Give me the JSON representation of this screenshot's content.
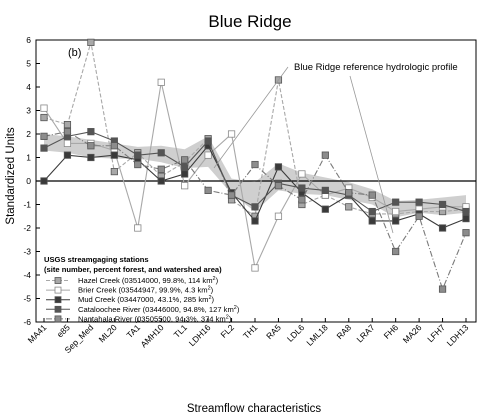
{
  "chart_data": {
    "type": "line",
    "title": "Blue Ridge",
    "panel_label": "(b)",
    "xlabel": "Streamflow characteristics",
    "ylabel": "Standardized Units",
    "ylim": [
      -6,
      6
    ],
    "yticks": [
      6,
      5,
      4,
      3,
      2,
      1,
      0,
      -1,
      -2,
      -3,
      -4,
      -5,
      -6
    ],
    "grid": false,
    "legend_placement": "bottom-left",
    "categories": [
      "MA41",
      "e85",
      "Sep_Med",
      "ML20",
      "TA1",
      "AMH10",
      "TL1",
      "LDH16",
      "FL2",
      "TH1",
      "RA5",
      "LDL6",
      "LML18",
      "RA8",
      "LRA7",
      "FH6",
      "MA26",
      "LFH7",
      "LDH13"
    ],
    "annotation": "Blue Ridge reference hydrologic profile",
    "reference_band": {
      "upper": [
        2.0,
        1.9,
        1.75,
        1.6,
        1.45,
        1.5,
        1.35,
        1.9,
        0.1,
        -0.05,
        0.75,
        0.35,
        0.15,
        -0.05,
        -0.35,
        -0.85,
        -0.8,
        -0.7,
        -0.6
      ],
      "lower": [
        1.3,
        1.2,
        1.0,
        0.95,
        0.95,
        0.8,
        0.55,
        0.6,
        -0.55,
        -1.3,
        -0.4,
        -0.55,
        -0.6,
        -0.8,
        -1.0,
        -1.55,
        -1.35,
        -1.45,
        -1.35
      ]
    },
    "legend": {
      "title_line1": "USGS streamgaging stations",
      "title_line2": "(site number, percent forest, and watershed area)"
    },
    "series": [
      {
        "name": "Hazel Creek",
        "site": "(03514000, 99.8%, 114 km",
        "sup": "2",
        "close": ")",
        "marker": "square",
        "fill": "#a8a8a8",
        "stroke": "#a8a8a8",
        "dash": "4,2",
        "values": [
          2.7,
          2.4,
          5.9,
          0.4,
          1.2,
          0.2,
          0.8,
          1.8,
          -0.8,
          -1.5,
          4.3,
          -1.0,
          -0.6,
          -1.1,
          -1.4,
          -1.4,
          -1.3,
          -1.3,
          -1.2
        ]
      },
      {
        "name": "Brier Creek",
        "site": "(03544947, 99.9%, 4.3 km",
        "sup": "2",
        "close": ")",
        "marker": "square-open",
        "fill": "#ffffff",
        "stroke": "#a8a8a8",
        "dash": "",
        "values": [
          3.1,
          1.6,
          1.6,
          1.3,
          -2.0,
          4.2,
          -0.2,
          1.1,
          2.0,
          -3.7,
          -1.5,
          0.3,
          -0.6,
          -0.3,
          -0.7,
          -1.3,
          -1.2,
          -1.1,
          -1.1
        ]
      },
      {
        "name": "Mud Creek",
        "site": "(03447000, 43.1%, 285 km",
        "sup": "2",
        "close": ")",
        "marker": "square",
        "fill": "#3a3a3a",
        "stroke": "#3a3a3a",
        "dash": "",
        "values": [
          0.0,
          1.1,
          1.0,
          1.1,
          0.9,
          0.0,
          0.3,
          1.5,
          -0.5,
          -1.7,
          0.6,
          -0.5,
          -1.2,
          -0.6,
          -1.7,
          -1.7,
          -1.4,
          -2.0,
          -1.6
        ]
      },
      {
        "name": "Cataloochee River",
        "site": "(03446000, 94.8%, 127 km",
        "sup": "2",
        "close": ")",
        "marker": "square",
        "fill": "#555555",
        "stroke": "#555555",
        "dash": "",
        "values": [
          1.4,
          1.9,
          2.1,
          1.7,
          1.1,
          1.2,
          0.6,
          1.7,
          -0.6,
          -1.1,
          -0.1,
          -0.3,
          -0.4,
          -0.6,
          -1.3,
          -0.9,
          -0.9,
          -1.0,
          -1.3
        ]
      },
      {
        "name": "Nantahala River",
        "site": "(03505500, 94.3%, 374 km",
        "sup": "2",
        "close": ")",
        "marker": "square",
        "fill": "#8c8c8c",
        "stroke": "#7a7a7a",
        "dash": "6,2,1,2",
        "values": [
          1.9,
          2.1,
          1.5,
          1.5,
          0.7,
          0.5,
          0.9,
          -0.4,
          -0.6,
          0.7,
          -0.2,
          -0.8,
          1.1,
          -0.5,
          -0.6,
          -3.0,
          -1.5,
          -4.6,
          -2.2
        ]
      }
    ]
  }
}
